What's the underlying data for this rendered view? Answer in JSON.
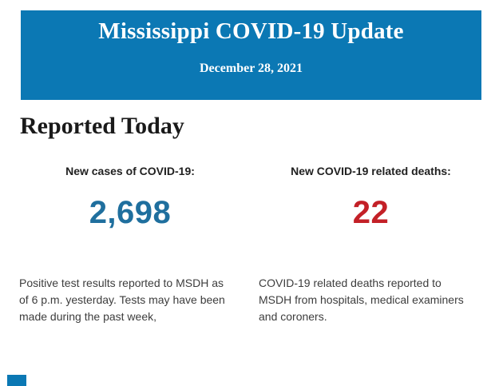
{
  "banner": {
    "title": "Mississippi COVID-19 Update",
    "date": "December 28, 2021"
  },
  "section": {
    "title": "Reported Today"
  },
  "stats": [
    {
      "label": "New cases of COVID-19:",
      "value": "2,698",
      "description": "Positive test results reported to MSDH as of 6 p.m. yesterday. Tests may have been made during the past week,",
      "description_lines": [
        "Positive test results reported to MSDH as",
        "of 6 p.m. yesterday. Tests may have been",
        "made during the past week,"
      ]
    },
    {
      "label": "New COVID-19 related deaths:",
      "value": "22",
      "description": "COVID-19 related deaths reported to MSDH from hospitals, medical examiners and coroners.",
      "description_lines": [
        "COVID-19 related deaths reported to",
        "MSDH from hospitals, medical examiners",
        "and coroners."
      ]
    }
  ],
  "colors": {
    "banner_bg": "#0b78b4",
    "banner_text": "#ffffff",
    "section_title": "#1a1a1a",
    "label_text": "#212121",
    "cases_value": "#1f6f9e",
    "deaths_value": "#c32027",
    "paragraph_text": "#3d3d3d"
  }
}
